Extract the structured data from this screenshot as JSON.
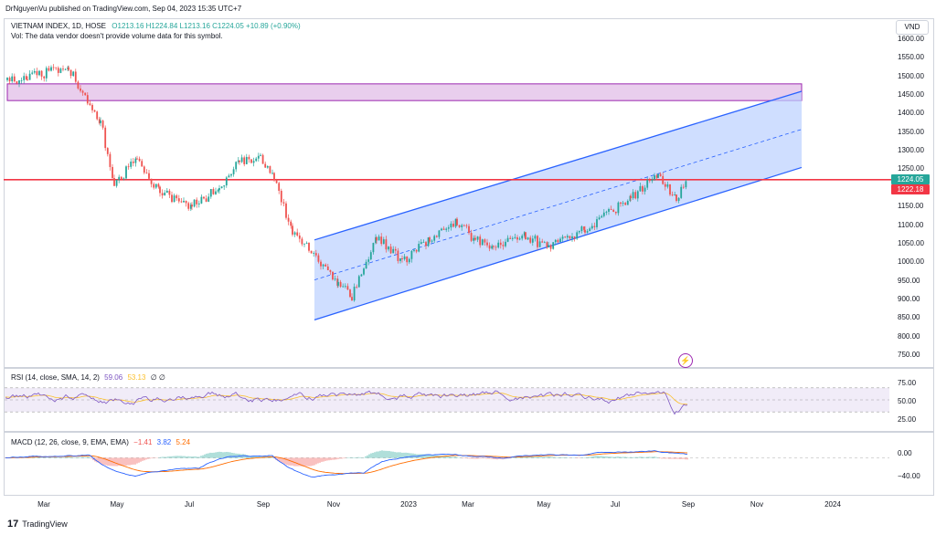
{
  "header": {
    "published": "DrNguyenVu published on TradingView.com, Sep 04, 2023 15:35 UTC+7",
    "symbol_line": "VIETNAM INDEX, 1D, HOSE",
    "ohlc": "O1213.16 H1224.84 L1213.16 C1224.05 +10.89 (+0.90%)",
    "vol_note": "Vol: The data vendor doesn't provide volume data for this symbol."
  },
  "price_axis": {
    "currency": "VND",
    "ticks": [
      "1600.00",
      "1550.00",
      "1500.00",
      "1450.00",
      "1400.00",
      "1350.00",
      "1300.00",
      "1250.00",
      "1200.00",
      "1150.00",
      "1100.00",
      "1050.00",
      "1000.00",
      "950.00",
      "900.00",
      "850.00",
      "800.00",
      "750.00"
    ],
    "last_price": "1224.05",
    "line_price": "1222.18"
  },
  "rsi": {
    "label": "RSI (14, close, SMA, 14, 2)",
    "value1": "59.06",
    "value2": "53.13",
    "value3": "∅ ∅",
    "ticks": [
      "75.00",
      "50.00",
      "25.00"
    ]
  },
  "macd": {
    "label": "MACD (12, 26, close, 9, EMA, EMA)",
    "value1": "−1.41",
    "value2": "3.82",
    "value3": "5.24",
    "ticks": [
      "0.00",
      "−40.00"
    ]
  },
  "time_axis": {
    "labels": [
      "Mar",
      "May",
      "Jul",
      "Sep",
      "Nov",
      "2023",
      "Mar",
      "May",
      "Jul",
      "Sep",
      "Nov",
      "2024"
    ]
  },
  "footer": {
    "brand": "TradingView"
  },
  "colors": {
    "up": "#26a69a",
    "down": "#ef5350",
    "channel": "#2962ff",
    "resistance": "#f23645",
    "zone": "#9c27b0",
    "rsi": "#7e57c2",
    "rsi_ma": "#fbc02d",
    "macd": "#2962ff",
    "signal": "#ff6d00"
  },
  "chart_data": {
    "type": "candlestick",
    "title": "VIETNAM INDEX, 1D, HOSE",
    "ylim": [
      730,
      1630
    ],
    "x": [
      "Mar",
      "May",
      "Jul",
      "Sep",
      "Nov",
      "2023",
      "Mar",
      "May",
      "Jul",
      "Sep",
      "Nov",
      "2024"
    ],
    "close_path": [
      {
        "x": "Feb 2022",
        "y": 1490
      },
      {
        "x": "Mar 2022",
        "y": 1500
      },
      {
        "x": "Apr 2022",
        "y": 1520
      },
      {
        "x": "Apr 2022",
        "y": 1380
      },
      {
        "x": "May 2022",
        "y": 1210
      },
      {
        "x": "May 2022",
        "y": 1280
      },
      {
        "x": "Jun 2022",
        "y": 1190
      },
      {
        "x": "Jun 2022",
        "y": 1150
      },
      {
        "x": "Jul 2022",
        "y": 1200
      },
      {
        "x": "Aug 2022",
        "y": 1270
      },
      {
        "x": "Aug 2022",
        "y": 1280
      },
      {
        "x": "Sep 2022",
        "y": 1230
      },
      {
        "x": "Oct 2022",
        "y": 1080
      },
      {
        "x": "Oct 2022",
        "y": 1040
      },
      {
        "x": "Nov 2022",
        "y": 940
      },
      {
        "x": "Nov 2022",
        "y": 910
      },
      {
        "x": "Dec 2022",
        "y": 1070
      },
      {
        "x": "Dec 2022",
        "y": 1000
      },
      {
        "x": "Jan 2023",
        "y": 1060
      },
      {
        "x": "Jan 2023",
        "y": 1110
      },
      {
        "x": "Feb 2023",
        "y": 1060
      },
      {
        "x": "Mar 2023",
        "y": 1040
      },
      {
        "x": "Apr 2023",
        "y": 1070
      },
      {
        "x": "May 2023",
        "y": 1040
      },
      {
        "x": "Jun 2023",
        "y": 1090
      },
      {
        "x": "Jul 2023",
        "y": 1170
      },
      {
        "x": "Aug 2023",
        "y": 1240
      },
      {
        "x": "Aug 2023",
        "y": 1170
      },
      {
        "x": "Sep 2023",
        "y": 1224
      }
    ],
    "annotations": {
      "supply_zone": [
        1435,
        1480
      ],
      "resistance_level": 1222.18,
      "channel_start": {
        "x": "Oct 2022",
        "lower": 845,
        "upper": 1060
      },
      "channel_end": {
        "x": "Nov 2023",
        "lower": 1255,
        "upper": 1460
      }
    },
    "rsi": {
      "ylim": [
        0,
        100
      ],
      "last": 59.06,
      "ma": 53.13
    },
    "macd": {
      "ylim": [
        -60,
        40
      ],
      "macd": -1.41,
      "signal": 3.82,
      "hist": 5.24
    }
  }
}
